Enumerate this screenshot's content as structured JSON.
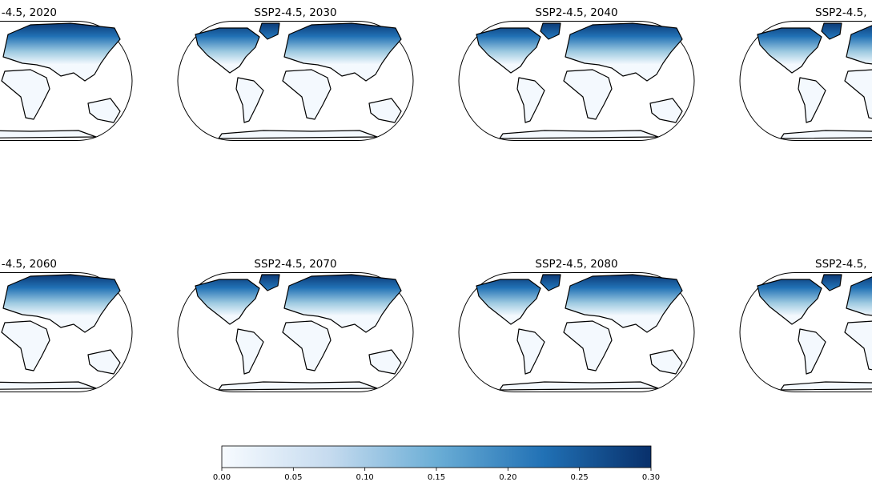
{
  "panels": [
    {
      "title": "-4.5, 2020"
    },
    {
      "title": "SSP2-4.5, 2030"
    },
    {
      "title": "SSP2-4.5, 2040"
    },
    {
      "title": "SSP2-4.5,"
    },
    {
      "title": "-4.5, 2060"
    },
    {
      "title": "SSP2-4.5, 2070"
    },
    {
      "title": "SSP2-4.5, 2080"
    },
    {
      "title": "SSP2-4.5,"
    }
  ],
  "colorbar": {
    "colormap": "Blues",
    "lim": [
      0,
      0.3
    ],
    "ticks": [
      {
        "value": 0,
        "label": "0.00"
      },
      {
        "value": 0.05,
        "label": "0.05"
      },
      {
        "value": 0.1,
        "label": "0.10"
      },
      {
        "value": 0.15,
        "label": "0.15"
      },
      {
        "value": 0.2,
        "label": "0.20"
      },
      {
        "value": 0.25,
        "label": "0.25"
      },
      {
        "value": 0.3,
        "label": "0.30"
      }
    ]
  }
}
